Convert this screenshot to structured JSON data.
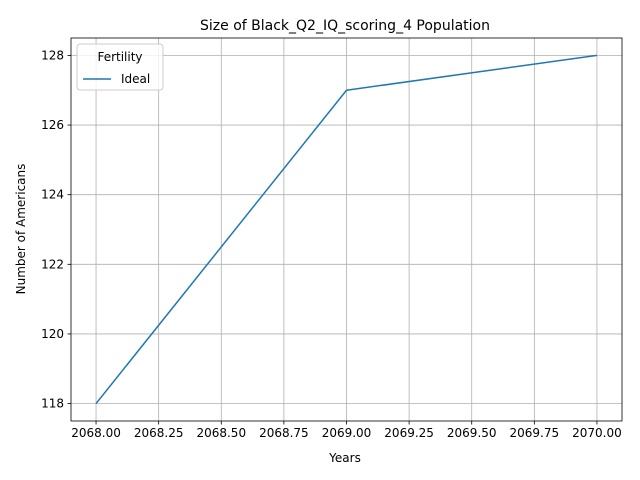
{
  "chart_data": {
    "type": "line",
    "title": "Size of Black_Q2_IQ_scoring_4 Population",
    "xlabel": "Years",
    "ylabel": "Number of Americans",
    "xlim": [
      2067.9,
      2070.1
    ],
    "ylim": [
      117.5,
      128.5
    ],
    "x_ticks": [
      2068.0,
      2068.25,
      2068.5,
      2068.75,
      2069.0,
      2069.25,
      2069.5,
      2069.75,
      2070.0
    ],
    "x_tick_labels": [
      "2068.00",
      "2068.25",
      "2068.50",
      "2068.75",
      "2069.00",
      "2069.25",
      "2069.50",
      "2069.75",
      "2070.00"
    ],
    "y_ticks": [
      118,
      120,
      122,
      124,
      126,
      128
    ],
    "y_tick_labels": [
      "118",
      "120",
      "122",
      "124",
      "126",
      "128"
    ],
    "grid": true,
    "legend": {
      "title": "Fertility",
      "placement": "top-left"
    },
    "series": [
      {
        "name": "Ideal",
        "color": "#1f77b4",
        "x": [
          2068,
          2069,
          2070
        ],
        "y": [
          118,
          127,
          128
        ]
      }
    ]
  }
}
